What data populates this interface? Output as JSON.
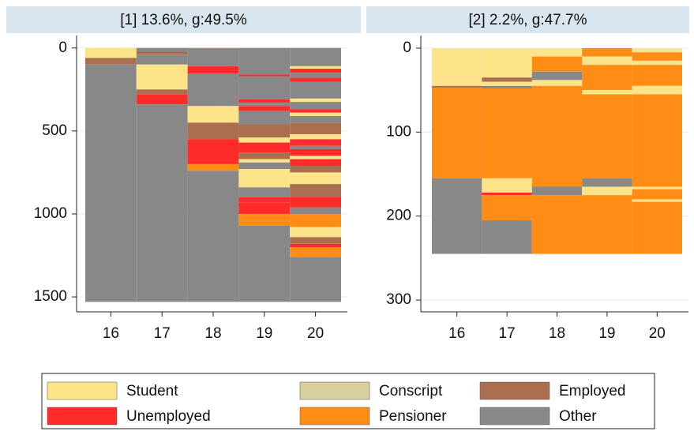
{
  "chart_data": [
    {
      "type": "sequence",
      "title": "[1] 13.6%, g:49.5%",
      "categories": [
        "16",
        "17",
        "18",
        "19",
        "20"
      ],
      "ylim": [
        -75,
        1590
      ],
      "yreverse": true,
      "yticks": [
        0,
        500,
        1000,
        1500
      ],
      "grid": true,
      "stacks": [
        [
          {
            "state": 0,
            "value": 60
          },
          {
            "state": 2,
            "value": 40
          },
          {
            "state": 5,
            "value": 1430
          }
        ],
        [
          {
            "state": 5,
            "value": 20
          },
          {
            "state": 2,
            "value": 20
          },
          {
            "state": 5,
            "value": 60
          },
          {
            "state": 0,
            "value": 150
          },
          {
            "state": 2,
            "value": 30
          },
          {
            "state": 3,
            "value": 60
          },
          {
            "state": 5,
            "value": 1190
          }
        ],
        [
          {
            "state": 2,
            "value": 5
          },
          {
            "state": 5,
            "value": 105
          },
          {
            "state": 3,
            "value": 45
          },
          {
            "state": 5,
            "value": 195
          },
          {
            "state": 0,
            "value": 100
          },
          {
            "state": 2,
            "value": 100
          },
          {
            "state": 3,
            "value": 150
          },
          {
            "state": 4,
            "value": 40
          },
          {
            "state": 5,
            "value": 790
          }
        ],
        [
          {
            "state": 5,
            "value": 160
          },
          {
            "state": 3,
            "value": 10
          },
          {
            "state": 5,
            "value": 140
          },
          {
            "state": 3,
            "value": 20
          },
          {
            "state": 5,
            "value": 20
          },
          {
            "state": 3,
            "value": 30
          },
          {
            "state": 5,
            "value": 80
          },
          {
            "state": 2,
            "value": 80
          },
          {
            "state": 0,
            "value": 30
          },
          {
            "state": 3,
            "value": 60
          },
          {
            "state": 2,
            "value": 40
          },
          {
            "state": 0,
            "value": 20
          },
          {
            "state": 5,
            "value": 40
          },
          {
            "state": 0,
            "value": 110
          },
          {
            "state": 5,
            "value": 60
          },
          {
            "state": 3,
            "value": 30
          },
          {
            "state": 3,
            "value": 70
          },
          {
            "state": 4,
            "value": 70
          },
          {
            "state": 5,
            "value": 460
          }
        ],
        [
          {
            "state": 5,
            "value": 110
          },
          {
            "state": 0,
            "value": 15
          },
          {
            "state": 3,
            "value": 25
          },
          {
            "state": 5,
            "value": 30
          },
          {
            "state": 3,
            "value": 25
          },
          {
            "state": 5,
            "value": 100
          },
          {
            "state": 0,
            "value": 20
          },
          {
            "state": 5,
            "value": 45
          },
          {
            "state": 3,
            "value": 20
          },
          {
            "state": 0,
            "value": 20
          },
          {
            "state": 5,
            "value": 40
          },
          {
            "state": 2,
            "value": 70
          },
          {
            "state": 0,
            "value": 30
          },
          {
            "state": 3,
            "value": 40
          },
          {
            "state": 5,
            "value": 20
          },
          {
            "state": 3,
            "value": 40
          },
          {
            "state": 0,
            "value": 20
          },
          {
            "state": 3,
            "value": 40
          },
          {
            "state": 2,
            "value": 40
          },
          {
            "state": 0,
            "value": 70
          },
          {
            "state": 2,
            "value": 80
          },
          {
            "state": 3,
            "value": 60
          },
          {
            "state": 5,
            "value": 40
          },
          {
            "state": 4,
            "value": 80
          },
          {
            "state": 0,
            "value": 60
          },
          {
            "state": 2,
            "value": 40
          },
          {
            "state": 3,
            "value": 20
          },
          {
            "state": 4,
            "value": 60
          },
          {
            "state": 5,
            "value": 270
          }
        ]
      ]
    },
    {
      "type": "sequence",
      "title": "[2] 2.2%, g:47.7%",
      "categories": [
        "16",
        "17",
        "18",
        "19",
        "20"
      ],
      "ylim": [
        -15,
        314
      ],
      "yreverse": true,
      "yticks": [
        0,
        100,
        200,
        300
      ],
      "grid": true,
      "stacks": [
        [
          {
            "state": 0,
            "value": 45
          },
          {
            "state": 2,
            "value": 2
          },
          {
            "state": 4,
            "value": 108
          },
          {
            "state": 5,
            "value": 90
          }
        ],
        [
          {
            "state": 0,
            "value": 35
          },
          {
            "state": 2,
            "value": 5
          },
          {
            "state": 0,
            "value": 5
          },
          {
            "state": 5,
            "value": 3
          },
          {
            "state": 4,
            "value": 107
          },
          {
            "state": 0,
            "value": 17
          },
          {
            "state": 3,
            "value": 3
          },
          {
            "state": 4,
            "value": 30
          },
          {
            "state": 5,
            "value": 40
          }
        ],
        [
          {
            "state": 0,
            "value": 10
          },
          {
            "state": 4,
            "value": 18
          },
          {
            "state": 5,
            "value": 10
          },
          {
            "state": 0,
            "value": 7
          },
          {
            "state": 4,
            "value": 120
          },
          {
            "state": 5,
            "value": 10
          },
          {
            "state": 4,
            "value": 70
          }
        ],
        [
          {
            "state": 4,
            "value": 10
          },
          {
            "state": 0,
            "value": 10
          },
          {
            "state": 4,
            "value": 30
          },
          {
            "state": 0,
            "value": 5
          },
          {
            "state": 4,
            "value": 100
          },
          {
            "state": 5,
            "value": 10
          },
          {
            "state": 0,
            "value": 10
          },
          {
            "state": 4,
            "value": 70
          }
        ],
        [
          {
            "state": 0,
            "value": 5
          },
          {
            "state": 4,
            "value": 10
          },
          {
            "state": 0,
            "value": 5
          },
          {
            "state": 4,
            "value": 25
          },
          {
            "state": 0,
            "value": 10
          },
          {
            "state": 4,
            "value": 110
          },
          {
            "state": 0,
            "value": 3
          },
          {
            "state": 4,
            "value": 12
          },
          {
            "state": 0,
            "value": 3
          },
          {
            "state": 4,
            "value": 62
          }
        ]
      ]
    }
  ],
  "legend": {
    "items": [
      {
        "name": "Student",
        "color": "#fde38a"
      },
      {
        "name": "Conscript",
        "color": "#d8cf9c"
      },
      {
        "name": "Employed",
        "color": "#ab6f50"
      },
      {
        "name": "Unemployed",
        "color": "#ff2a2a"
      },
      {
        "name": "Pensioner",
        "color": "#ff8c14"
      },
      {
        "name": "Other",
        "color": "#888888"
      }
    ]
  }
}
